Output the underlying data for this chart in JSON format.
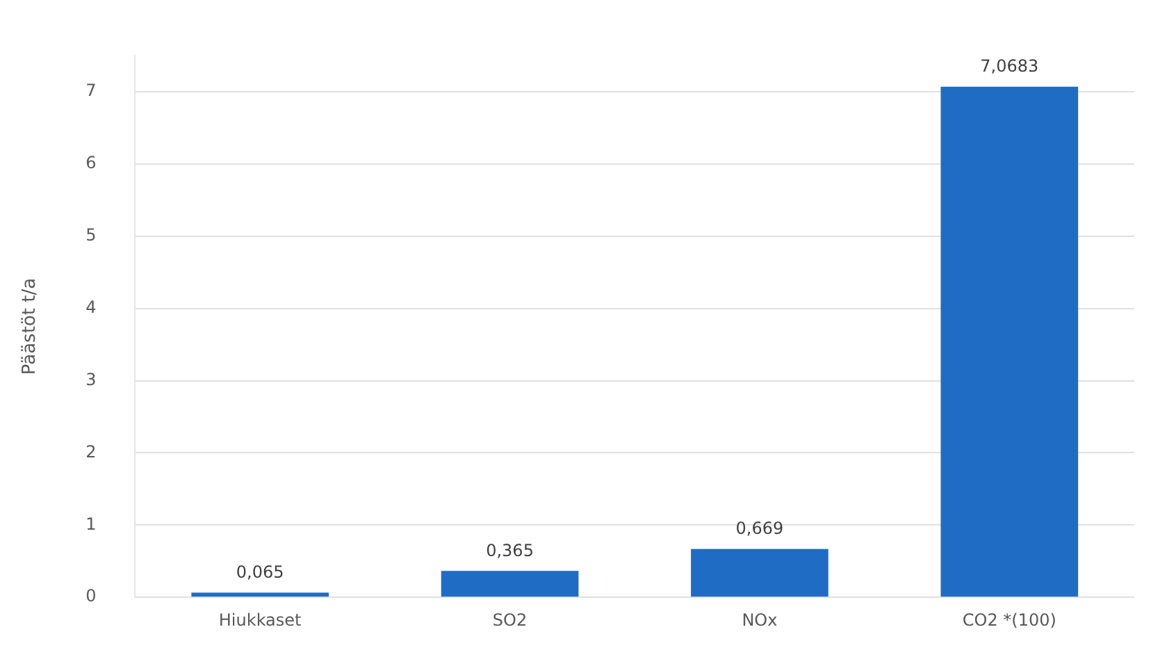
{
  "chart_data": {
    "type": "bar",
    "ylabel": "Päästöt t/a",
    "categories": [
      "Hiukkaset",
      "SO2",
      "NOx",
      "CO2 *(100)"
    ],
    "values": [
      0.065,
      0.365,
      0.669,
      7.0683
    ],
    "value_labels": [
      "0,065",
      "0,365",
      "0,669",
      "7,0683"
    ],
    "color": "#1f6cc4",
    "ylim": [
      0,
      7.5
    ],
    "yticks": [
      0,
      1,
      2,
      3,
      4,
      5,
      6,
      7
    ],
    "grid": "y",
    "legend": false
  }
}
